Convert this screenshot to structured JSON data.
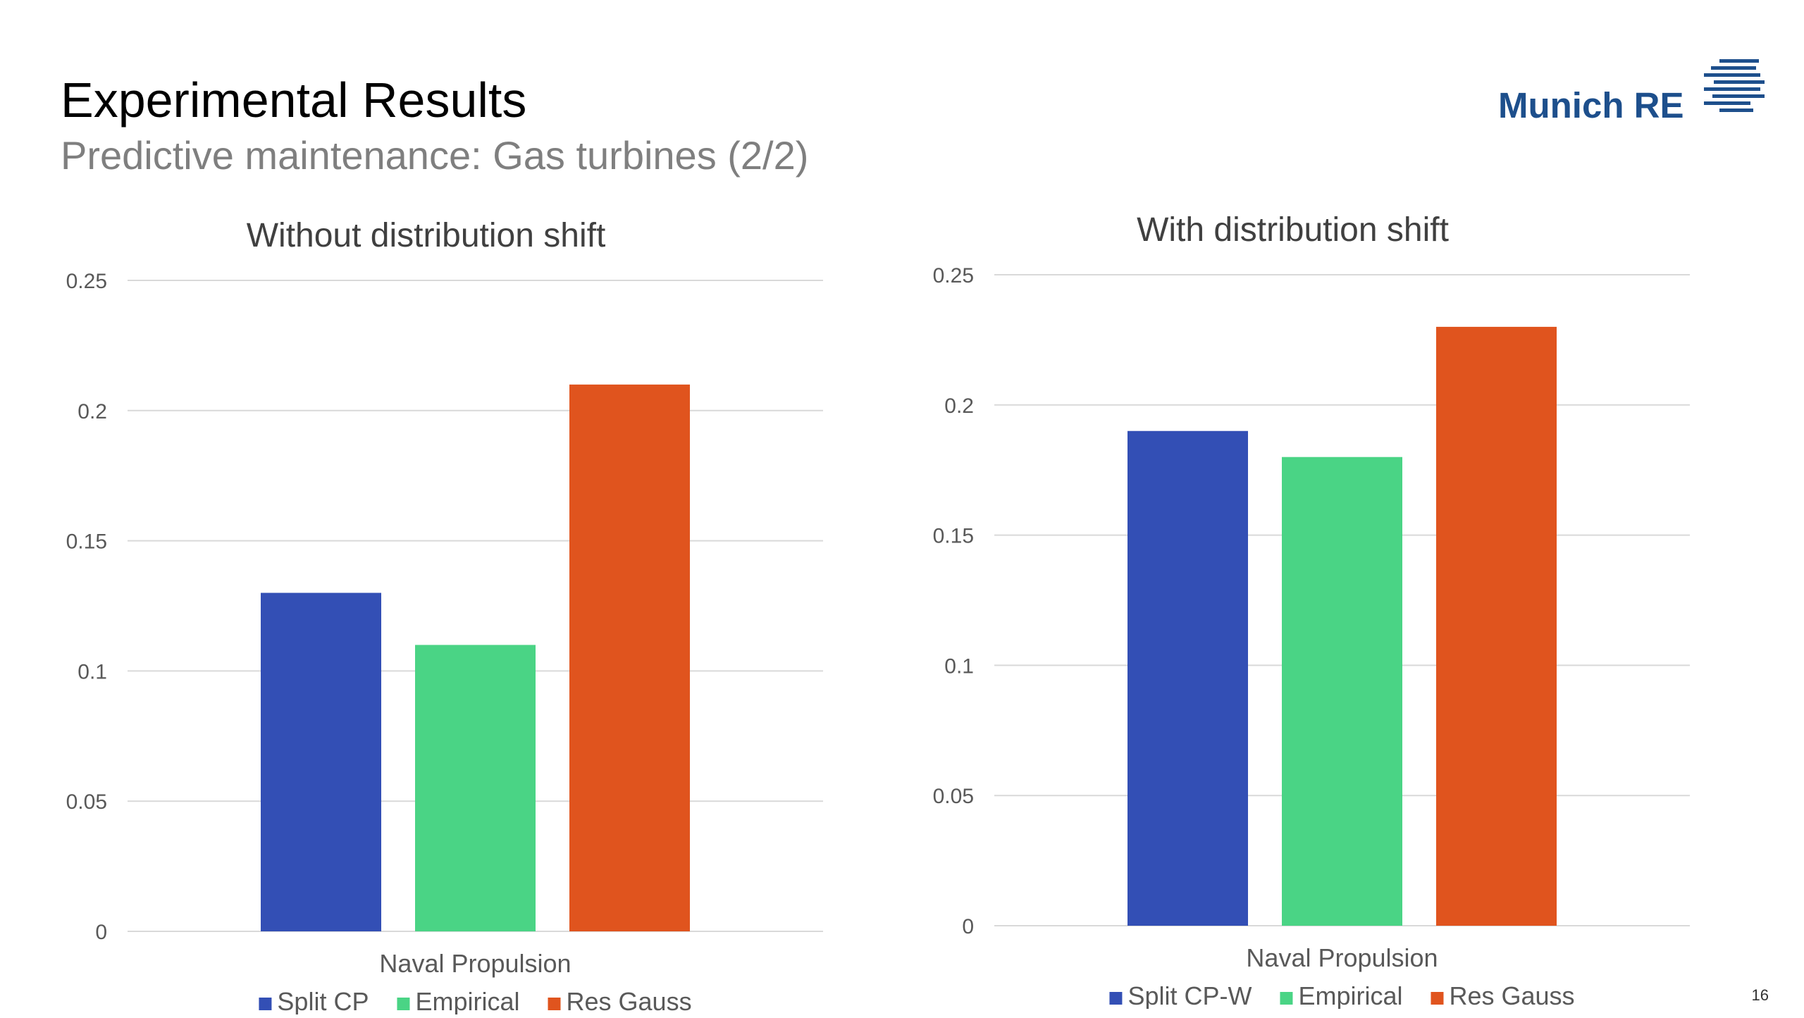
{
  "slide": {
    "title": "Experimental Results",
    "subtitle": "Predictive maintenance: Gas turbines (2/2)",
    "page_number": "16"
  },
  "logo": {
    "text": "Munich RE",
    "color": "#1d4f8c",
    "mark_icon": "munich-re-stripes-logo"
  },
  "chart_data": [
    {
      "type": "bar",
      "title": "Without distribution shift",
      "categories": [
        "Naval Propulsion"
      ],
      "series": [
        {
          "name": "Split CP",
          "values": [
            0.13
          ],
          "color": "#334fb5"
        },
        {
          "name": "Empirical",
          "values": [
            0.11
          ],
          "color": "#4ad485"
        },
        {
          "name": "Res Gauss",
          "values": [
            0.21
          ],
          "color": "#e0541e"
        }
      ],
      "ylim": [
        0,
        0.25
      ],
      "yticks": [
        "0",
        "0.05",
        "0.1",
        "0.15",
        "0.2",
        "0.25"
      ],
      "xlabel": "",
      "ylabel": "",
      "grid": true,
      "legend_position": "bottom"
    },
    {
      "type": "bar",
      "title": "With distribution shift",
      "categories": [
        "Naval Propulsion"
      ],
      "series": [
        {
          "name": "Split CP-W",
          "values": [
            0.19
          ],
          "color": "#334fb5"
        },
        {
          "name": "Empirical",
          "values": [
            0.18
          ],
          "color": "#4ad485"
        },
        {
          "name": "Res Gauss",
          "values": [
            0.23
          ],
          "color": "#e0541e"
        }
      ],
      "ylim": [
        0,
        0.25
      ],
      "yticks": [
        "0",
        "0.05",
        "0.1",
        "0.15",
        "0.2",
        "0.25"
      ],
      "xlabel": "",
      "ylabel": "",
      "grid": true,
      "legend_position": "bottom"
    }
  ]
}
